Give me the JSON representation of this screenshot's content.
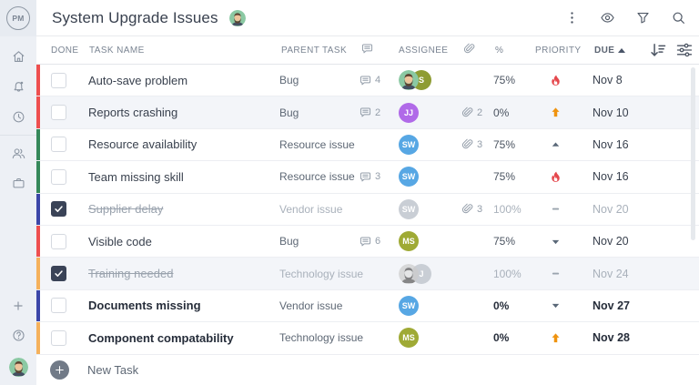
{
  "app": {
    "logo_text": "PM"
  },
  "topbar": {
    "title": "System Upgrade Issues",
    "title_avatar": "bearded-man-avatar",
    "icons": [
      "kebab-menu-icon",
      "eye-icon",
      "filter-funnel-icon",
      "search-icon"
    ]
  },
  "sidebar": {
    "icons": [
      "home-icon",
      "notifications-bell-icon",
      "recent-clock-icon",
      "team-people-icon",
      "portfolio-briefcase-icon",
      "add-plus-icon",
      "help-icon",
      "user-avatar"
    ]
  },
  "table": {
    "headers": {
      "done": "DONE",
      "task": "TASK NAME",
      "parent": "PARENT TASK",
      "comments": "comments-icon",
      "assignee": "ASSIGNEE",
      "attachments": "paperclip-icon",
      "percent": "%",
      "priority": "PRIORITY",
      "due": "DUE",
      "due_sort": "ascending",
      "actions": [
        "sort-descending-icon",
        "column-settings-sliders-icon"
      ]
    },
    "rows": [
      {
        "name": "Auto-save problem",
        "parent": "Bug",
        "comments": 4,
        "attachments": null,
        "assignees": [
          {
            "kind": "photo",
            "gray": false
          },
          {
            "kind": "initials",
            "text": "S",
            "color": "#8e9c33"
          }
        ],
        "percent": "75%",
        "priority": "urgent",
        "due": "Nov 8",
        "done": false,
        "bold": false,
        "highlighted": false,
        "strip": "#ee4f4f"
      },
      {
        "name": "Reports crashing",
        "parent": "Bug",
        "comments": 2,
        "attachments": 2,
        "assignees": [
          {
            "kind": "initials",
            "text": "JJ",
            "color": "#b06ae8"
          }
        ],
        "percent": "0%",
        "priority": "high",
        "due": "Nov 10",
        "done": false,
        "bold": false,
        "highlighted": true,
        "strip": "#ee4f4f"
      },
      {
        "name": "Resource availability",
        "parent": "Resource issue",
        "comments": null,
        "attachments": 3,
        "assignees": [
          {
            "kind": "initials",
            "text": "SW",
            "color": "#57a7e4"
          }
        ],
        "percent": "75%",
        "priority": "medium",
        "due": "Nov 16",
        "done": false,
        "bold": false,
        "highlighted": false,
        "strip": "#35885a"
      },
      {
        "name": "Team missing skill",
        "parent": "Resource issue",
        "comments": 3,
        "attachments": null,
        "assignees": [
          {
            "kind": "initials",
            "text": "SW",
            "color": "#57a7e4"
          }
        ],
        "percent": "75%",
        "priority": "urgent",
        "due": "Nov 16",
        "done": false,
        "bold": false,
        "highlighted": false,
        "strip": "#35885a"
      },
      {
        "name": "Supplier delay",
        "parent": "Vendor issue",
        "comments": null,
        "attachments": 3,
        "assignees": [
          {
            "kind": "initials",
            "text": "SW",
            "color": "#c9ced5"
          }
        ],
        "percent": "100%",
        "priority": "none",
        "due": "Nov 20",
        "done": true,
        "bold": false,
        "highlighted": false,
        "strip": "#3c47a8"
      },
      {
        "name": "Visible code",
        "parent": "Bug",
        "comments": 6,
        "attachments": null,
        "assignees": [
          {
            "kind": "initials",
            "text": "MS",
            "color": "#9faa35"
          }
        ],
        "percent": "75%",
        "priority": "low",
        "due": "Nov 20",
        "done": false,
        "bold": false,
        "highlighted": false,
        "strip": "#ee4f4f"
      },
      {
        "name": "Training needed",
        "parent": "Technology issue",
        "comments": null,
        "attachments": null,
        "assignees": [
          {
            "kind": "photo",
            "gray": true
          },
          {
            "kind": "initials",
            "text": "J",
            "color": "#c9ced5"
          }
        ],
        "percent": "100%",
        "priority": "none",
        "due": "Nov 24",
        "done": true,
        "bold": false,
        "highlighted": true,
        "strip": "#f5b15c"
      },
      {
        "name": "Documents missing",
        "parent": "Vendor issue",
        "comments": null,
        "attachments": null,
        "assignees": [
          {
            "kind": "initials",
            "text": "SW",
            "color": "#57a7e4"
          }
        ],
        "percent": "0%",
        "priority": "low",
        "due": "Nov 27",
        "done": false,
        "bold": true,
        "highlighted": false,
        "strip": "#3c47a8"
      },
      {
        "name": "Component compatability",
        "parent": "Technology issue",
        "comments": null,
        "attachments": null,
        "assignees": [
          {
            "kind": "initials",
            "text": "MS",
            "color": "#9faa35"
          }
        ],
        "percent": "0%",
        "priority": "high",
        "due": "Nov 28",
        "done": false,
        "bold": true,
        "highlighted": false,
        "strip": "#f5b15c"
      }
    ]
  },
  "new_task": {
    "label": "New Task"
  },
  "colors": {
    "strip_red": "#ee4f4f",
    "strip_green": "#35885a",
    "strip_blue": "#3c47a8",
    "strip_orange": "#f5b15c",
    "priority_urgent": "#e5484d",
    "priority_high": "#ef930f",
    "priority_neutral": "#5a6878",
    "checked_box": "#3a4357",
    "row_highlight": "#f3f5f9",
    "avatar_purple": "#b06ae8",
    "avatar_blue": "#57a7e4",
    "avatar_olive": "#9faa35",
    "avatar_gray": "#c9ced5"
  }
}
